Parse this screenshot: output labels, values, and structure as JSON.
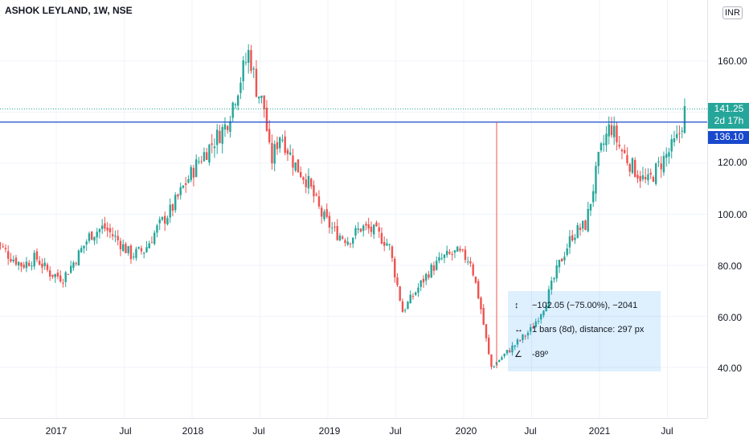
{
  "header": {
    "title": "ASHOK LEYLAND, 1W, NSE"
  },
  "price_scale": {
    "currency": "INR",
    "labels": [
      "160.00",
      "140.00",
      "120.00",
      "100.00",
      "80.00",
      "60.00",
      "40.00"
    ],
    "current_price": "141.25",
    "countdown": "2d 17h",
    "line_price": "136.10"
  },
  "time_scale": {
    "labels": [
      "2017",
      "Jul",
      "2018",
      "Jul",
      "2019",
      "Jul",
      "2020",
      "Jul",
      "2021",
      "Jul"
    ]
  },
  "measure": {
    "price_change": "−102.05 (−75.00%), −2041",
    "bars": "1 bars (8d), distance: 297 px",
    "angle": "-89º"
  },
  "colors": {
    "up": "#26a69a",
    "down": "#ef5350",
    "horizontal_line": "#1848cc",
    "measure_fill": "#2196f3"
  },
  "chart_data": {
    "type": "candlestick",
    "title": "ASHOK LEYLAND, 1W, NSE",
    "ylim": [
      25,
      172
    ],
    "y_ticks": [
      40,
      60,
      80,
      100,
      120,
      140,
      160
    ],
    "horizontal_line": 136.1,
    "last_price": 141.25,
    "close_path": [
      [
        2016.55,
        90
      ],
      [
        2016.65,
        84
      ],
      [
        2016.75,
        80
      ],
      [
        2016.85,
        83
      ],
      [
        2016.95,
        77
      ],
      [
        2017.05,
        75
      ],
      [
        2017.15,
        83
      ],
      [
        2017.25,
        92
      ],
      [
        2017.35,
        95
      ],
      [
        2017.45,
        90
      ],
      [
        2017.55,
        84
      ],
      [
        2017.65,
        86
      ],
      [
        2017.75,
        95
      ],
      [
        2017.85,
        102
      ],
      [
        2017.95,
        112
      ],
      [
        2018.05,
        121
      ],
      [
        2018.15,
        128
      ],
      [
        2018.25,
        135
      ],
      [
        2018.35,
        152
      ],
      [
        2018.42,
        164
      ],
      [
        2018.47,
        150
      ],
      [
        2018.53,
        142
      ],
      [
        2018.58,
        120
      ],
      [
        2018.65,
        132
      ],
      [
        2018.75,
        120
      ],
      [
        2018.85,
        113
      ],
      [
        2018.95,
        100
      ],
      [
        2019.05,
        93
      ],
      [
        2019.15,
        90
      ],
      [
        2019.25,
        95
      ],
      [
        2019.35,
        93
      ],
      [
        2019.45,
        88
      ],
      [
        2019.55,
        62
      ],
      [
        2019.65,
        70
      ],
      [
        2019.75,
        78
      ],
      [
        2019.85,
        83
      ],
      [
        2019.95,
        85
      ],
      [
        2020.05,
        82
      ],
      [
        2020.12,
        65
      ],
      [
        2020.2,
        40
      ],
      [
        2020.3,
        45
      ],
      [
        2020.4,
        50
      ],
      [
        2020.5,
        55
      ],
      [
        2020.6,
        65
      ],
      [
        2020.7,
        80
      ],
      [
        2020.8,
        92
      ],
      [
        2020.9,
        96
      ],
      [
        2021.0,
        123
      ],
      [
        2021.08,
        135
      ],
      [
        2021.15,
        126
      ],
      [
        2021.25,
        118
      ],
      [
        2021.35,
        112
      ],
      [
        2021.45,
        120
      ],
      [
        2021.52,
        125
      ],
      [
        2021.58,
        130
      ],
      [
        2021.63,
        141
      ]
    ]
  }
}
